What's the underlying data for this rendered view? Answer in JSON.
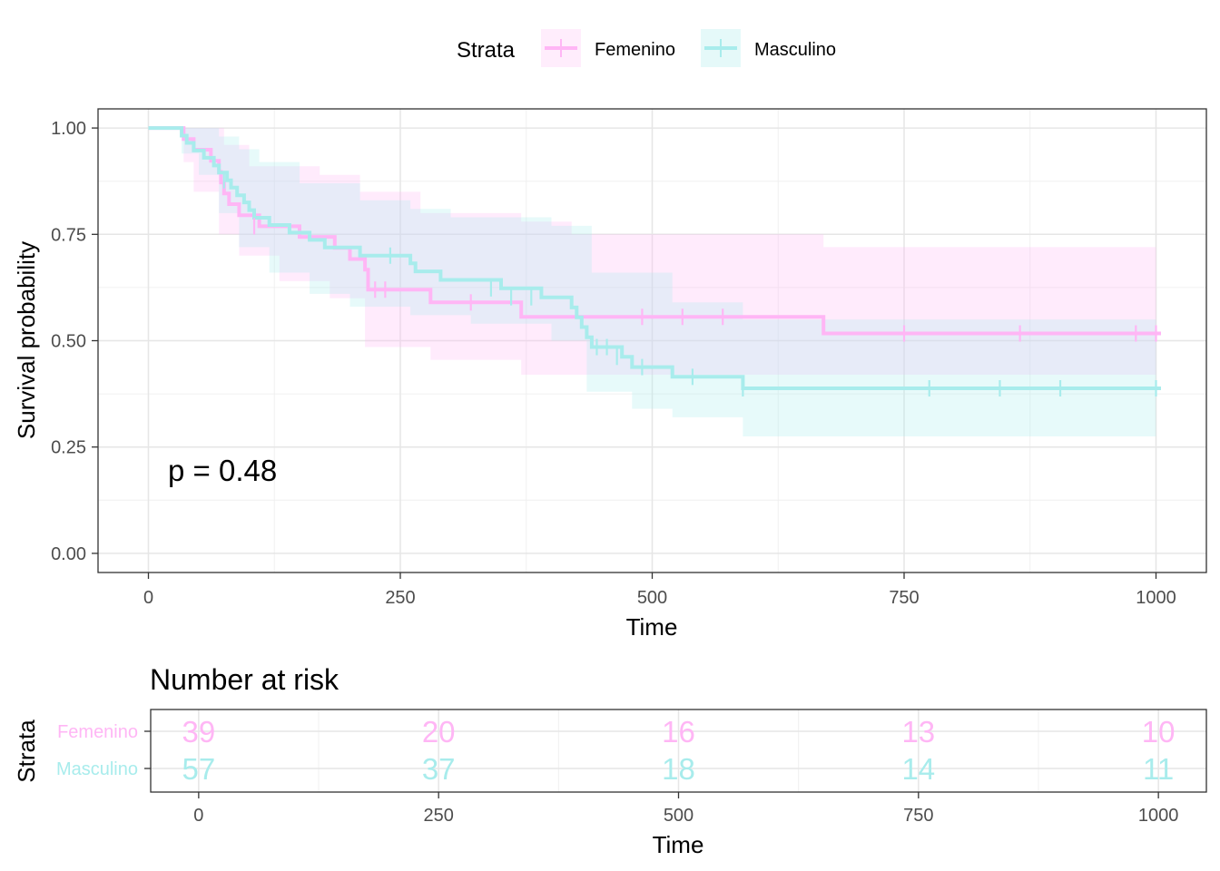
{
  "legend": {
    "title": "Strata",
    "items": [
      {
        "label": "Femenino",
        "color": "#ffb6f5"
      },
      {
        "label": "Masculino",
        "color": "#a8ecec"
      }
    ]
  },
  "pvalue_label": "p = 0.48",
  "chart_data": [
    {
      "type": "line",
      "subtype": "kaplan-meier",
      "xlabel": "Time",
      "ylabel": "Survival probability",
      "xlim": [
        -50,
        1050
      ],
      "ylim": [
        -0.045,
        1.045
      ],
      "x_ticks": [
        0,
        250,
        500,
        750,
        1000
      ],
      "y_ticks": [
        0,
        0.25,
        0.5,
        0.75,
        1.0
      ],
      "x_tick_labels": [
        "0",
        "250",
        "500",
        "750",
        "1000"
      ],
      "y_tick_labels": [
        "0.00",
        "0.25",
        "0.50",
        "0.75",
        "1.00"
      ],
      "grid": true,
      "legend_position": "top",
      "series": [
        {
          "name": "Femenino",
          "color": "#ffb6f5",
          "steps": [
            [
              0,
              1.0
            ],
            [
              35,
              0.974
            ],
            [
              45,
              0.949
            ],
            [
              62,
              0.923
            ],
            [
              70,
              0.897
            ],
            [
              72,
              0.872
            ],
            [
              75,
              0.846
            ],
            [
              80,
              0.821
            ],
            [
              90,
              0.795
            ],
            [
              110,
              0.769
            ],
            [
              150,
              0.744
            ],
            [
              185,
              0.718
            ],
            [
              200,
              0.692
            ],
            [
              215,
              0.667
            ],
            [
              218,
              0.62
            ],
            [
              280,
              0.59
            ],
            [
              370,
              0.556
            ],
            [
              670,
              0.517
            ],
            [
              1005,
              0.517
            ]
          ],
          "censored": [
            [
              105,
              0.769
            ],
            [
              225,
              0.62
            ],
            [
              235,
              0.62
            ],
            [
              320,
              0.59
            ],
            [
              490,
              0.556
            ],
            [
              530,
              0.556
            ],
            [
              570,
              0.556
            ],
            [
              750,
              0.517
            ],
            [
              865,
              0.517
            ],
            [
              980,
              0.517
            ],
            [
              1000,
              0.517
            ]
          ],
          "ci_upper": [
            [
              0,
              1.0
            ],
            [
              35,
              1.0
            ],
            [
              75,
              0.96
            ],
            [
              100,
              0.91
            ],
            [
              170,
              0.89
            ],
            [
              210,
              0.85
            ],
            [
              270,
              0.8
            ],
            [
              370,
              0.78
            ],
            [
              420,
              0.75
            ],
            [
              670,
              0.72
            ],
            [
              1000,
              0.72
            ]
          ],
          "ci_lower": [
            [
              0,
              1.0
            ],
            [
              35,
              0.92
            ],
            [
              45,
              0.85
            ],
            [
              70,
              0.75
            ],
            [
              90,
              0.7
            ],
            [
              130,
              0.64
            ],
            [
              180,
              0.6
            ],
            [
              215,
              0.485
            ],
            [
              280,
              0.455
            ],
            [
              370,
              0.42
            ],
            [
              670,
              0.42
            ],
            [
              1000,
              0.42
            ]
          ]
        },
        {
          "name": "Masculino",
          "color": "#a8ecec",
          "steps": [
            [
              0,
              1.0
            ],
            [
              33,
              0.982
            ],
            [
              38,
              0.965
            ],
            [
              45,
              0.947
            ],
            [
              55,
              0.93
            ],
            [
              65,
              0.912
            ],
            [
              70,
              0.895
            ],
            [
              78,
              0.877
            ],
            [
              82,
              0.86
            ],
            [
              88,
              0.842
            ],
            [
              95,
              0.825
            ],
            [
              100,
              0.807
            ],
            [
              105,
              0.789
            ],
            [
              120,
              0.772
            ],
            [
              140,
              0.754
            ],
            [
              160,
              0.737
            ],
            [
              175,
              0.719
            ],
            [
              210,
              0.7
            ],
            [
              260,
              0.682
            ],
            [
              265,
              0.663
            ],
            [
              290,
              0.643
            ],
            [
              350,
              0.623
            ],
            [
              390,
              0.602
            ],
            [
              420,
              0.578
            ],
            [
              425,
              0.555
            ],
            [
              430,
              0.532
            ],
            [
              435,
              0.508
            ],
            [
              440,
              0.485
            ],
            [
              470,
              0.462
            ],
            [
              480,
              0.438
            ],
            [
              520,
              0.415
            ],
            [
              590,
              0.388
            ],
            [
              1005,
              0.388
            ]
          ],
          "censored": [
            [
              75,
              0.877
            ],
            [
              240,
              0.7
            ],
            [
              340,
              0.623
            ],
            [
              360,
              0.602
            ],
            [
              380,
              0.602
            ],
            [
              445,
              0.485
            ],
            [
              455,
              0.485
            ],
            [
              465,
              0.462
            ],
            [
              490,
              0.438
            ],
            [
              540,
              0.415
            ],
            [
              590,
              0.388
            ],
            [
              775,
              0.388
            ],
            [
              845,
              0.388
            ],
            [
              905,
              0.388
            ],
            [
              1000,
              0.388
            ]
          ],
          "ci_upper": [
            [
              0,
              1.0
            ],
            [
              33,
              1.0
            ],
            [
              70,
              0.98
            ],
            [
              90,
              0.95
            ],
            [
              110,
              0.92
            ],
            [
              150,
              0.87
            ],
            [
              210,
              0.83
            ],
            [
              260,
              0.81
            ],
            [
              300,
              0.79
            ],
            [
              400,
              0.77
            ],
            [
              440,
              0.66
            ],
            [
              520,
              0.59
            ],
            [
              590,
              0.55
            ],
            [
              1000,
              0.55
            ]
          ],
          "ci_lower": [
            [
              0,
              1.0
            ],
            [
              33,
              0.94
            ],
            [
              50,
              0.89
            ],
            [
              70,
              0.8
            ],
            [
              90,
              0.72
            ],
            [
              120,
              0.66
            ],
            [
              160,
              0.61
            ],
            [
              200,
              0.58
            ],
            [
              260,
              0.56
            ],
            [
              320,
              0.54
            ],
            [
              400,
              0.5
            ],
            [
              435,
              0.38
            ],
            [
              480,
              0.34
            ],
            [
              520,
              0.32
            ],
            [
              590,
              0.275
            ],
            [
              1000,
              0.275
            ]
          ]
        }
      ]
    },
    {
      "type": "table",
      "title": "Number at risk",
      "xlabel": "Time",
      "ylabel": "Strata",
      "xlim": [
        -50,
        1050
      ],
      "x_ticks": [
        0,
        250,
        500,
        750,
        1000
      ],
      "x_tick_labels": [
        "0",
        "250",
        "500",
        "750",
        "1000"
      ],
      "rows": [
        {
          "label": "Femenino",
          "color": "#ffb6f5",
          "values": [
            "39",
            "20",
            "16",
            "13",
            "10"
          ]
        },
        {
          "label": "Masculino",
          "color": "#a8ecec",
          "values": [
            "57",
            "37",
            "18",
            "14",
            "11"
          ]
        }
      ]
    }
  ]
}
